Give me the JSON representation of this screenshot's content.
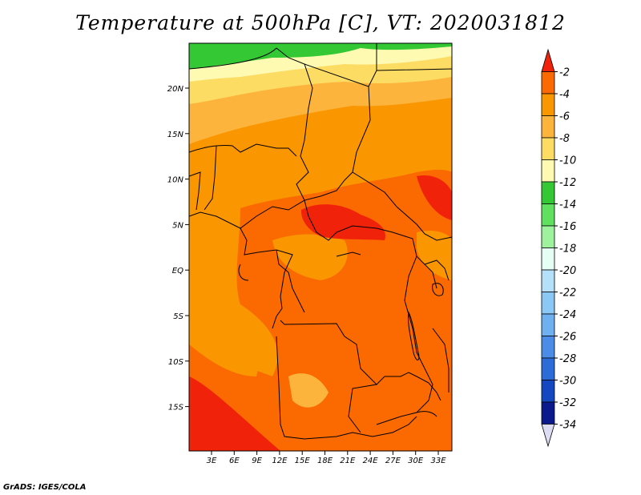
{
  "title": "Temperature at 500hPa [C], VT: 2020031812",
  "credit": "GrADS: IGES/COLA",
  "map": {
    "variable": "Temperature",
    "level": "500hPa",
    "units": "C",
    "valid_time": "2020031812",
    "lat_labels": [
      "20N",
      "15N",
      "10N",
      "5N",
      "EQ",
      "5S",
      "10S",
      "15S"
    ],
    "lon_labels": [
      "3E",
      "6E",
      "9E",
      "12E",
      "15E",
      "18E",
      "21E",
      "24E",
      "27E",
      "30E",
      "33E"
    ]
  },
  "colorbar": {
    "labels": [
      "-2",
      "-4",
      "-6",
      "-8",
      "-10",
      "-12",
      "-14",
      "-16",
      "-18",
      "-20",
      "-22",
      "-24",
      "-26",
      "-28",
      "-30",
      "-32",
      "-34"
    ],
    "colors": [
      "#f0230a",
      "#fb6a00",
      "#fa9600",
      "#fcb43c",
      "#fddc64",
      "#fefab2",
      "#34c934",
      "#5fe05f",
      "#9ef29e",
      "#e6fff4",
      "#b4e0fa",
      "#8cc8f5",
      "#6eb0f0",
      "#4b8ce6",
      "#2c6cd8",
      "#1448c0",
      "#0a1a8c",
      "#dcdcf2"
    ]
  }
}
